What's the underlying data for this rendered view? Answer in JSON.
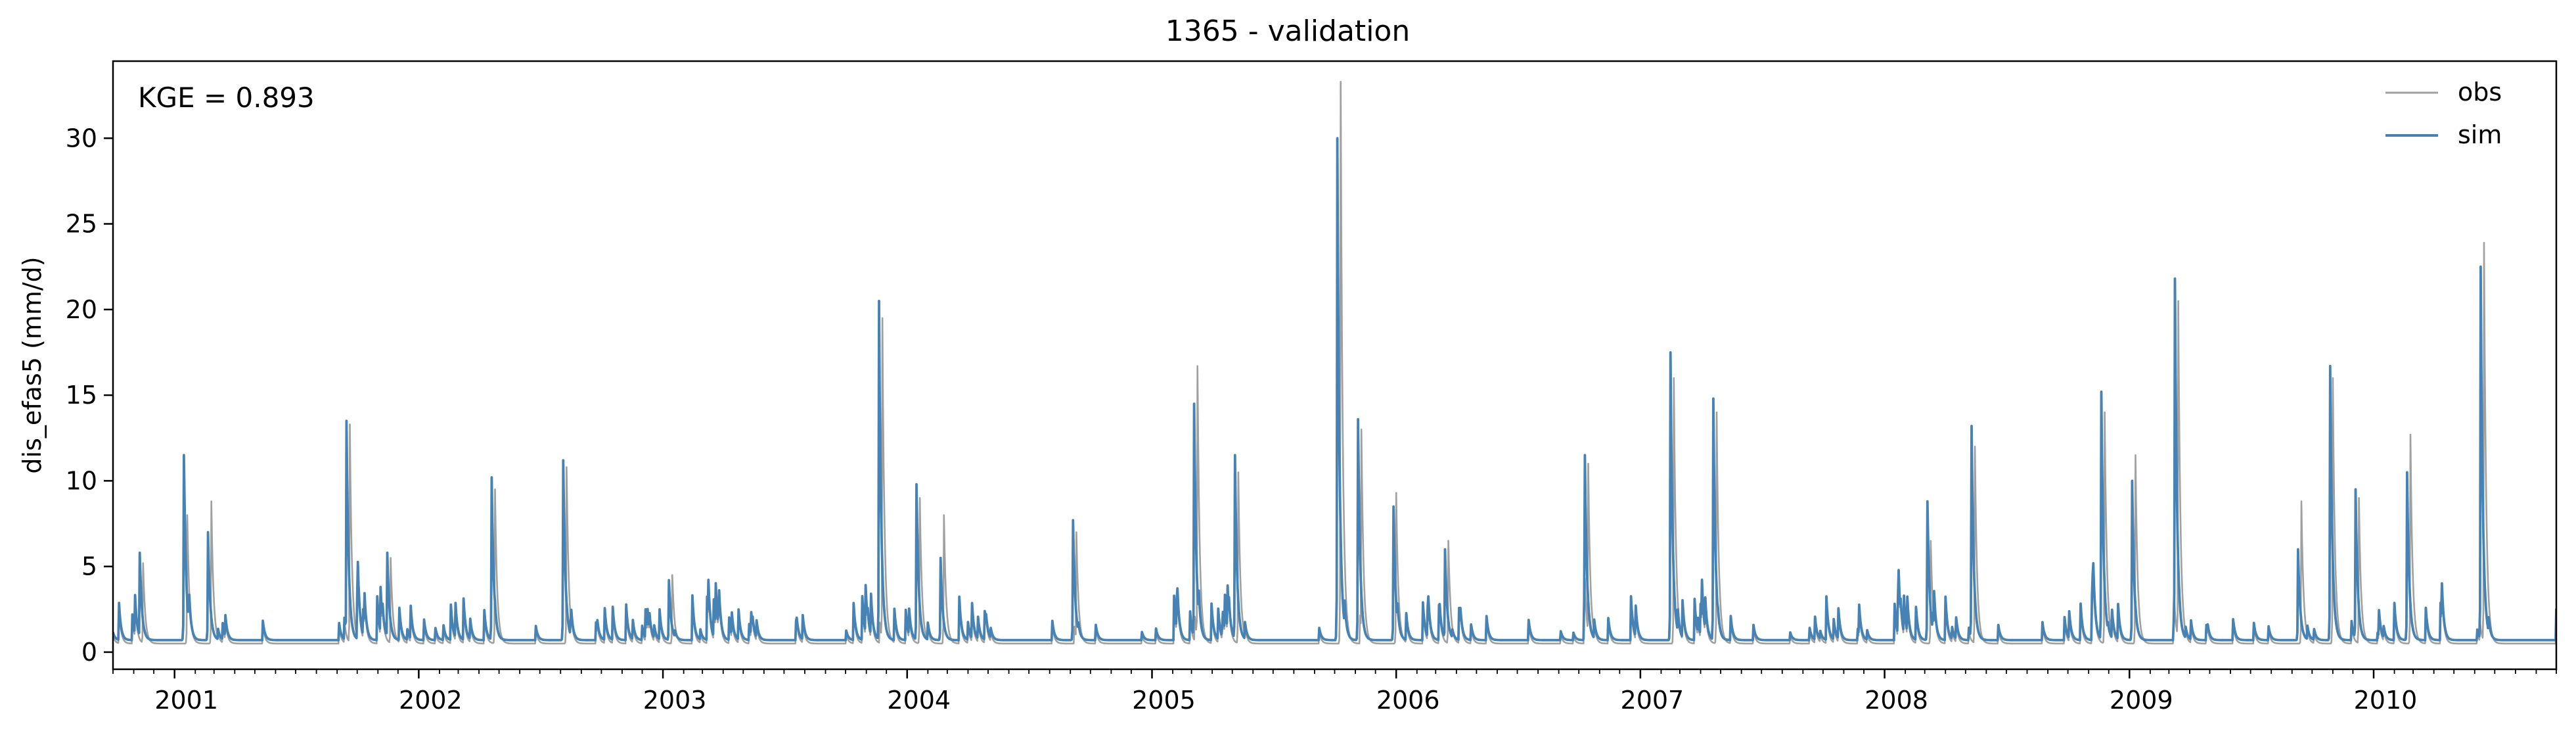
{
  "chart_data": {
    "type": "line",
    "title": "1365 - validation",
    "ylabel": "dis_efas5 (mm/d)",
    "xlabel": "",
    "xlim": [
      "2000-10-01",
      "2010-10-01"
    ],
    "ylim": [
      -1,
      34.5
    ],
    "yticks": [
      0,
      5,
      10,
      15,
      20,
      25,
      30
    ],
    "xticks": [
      "2001",
      "2002",
      "2003",
      "2004",
      "2005",
      "2006",
      "2007",
      "2008",
      "2009",
      "2010"
    ],
    "annotation": "KGE = 0.893",
    "legend_position": "top-right",
    "grid": false,
    "colors": {
      "obs": "#a0a0a0",
      "sim": "#4682b4"
    },
    "series": [
      {
        "name": "obs",
        "baseline": 0.5,
        "peaks": [
          [
            "2000-11-15",
            5.2
          ],
          [
            "2001-01-20",
            8.0
          ],
          [
            "2001-02-25",
            8.8
          ],
          [
            "2001-09-20",
            13.3
          ],
          [
            "2001-11-20",
            5.5
          ],
          [
            "2002-04-25",
            9.5
          ],
          [
            "2002-08-10",
            10.8
          ],
          [
            "2003-01-15",
            4.5
          ],
          [
            "2003-11-25",
            19.5
          ],
          [
            "2004-01-20",
            9.0
          ],
          [
            "2004-02-25",
            8.0
          ],
          [
            "2004-09-10",
            7.0
          ],
          [
            "2005-03-10",
            16.7
          ],
          [
            "2005-05-10",
            10.5
          ],
          [
            "2005-10-10",
            33.3
          ],
          [
            "2005-11-10",
            13.0
          ],
          [
            "2006-01-01",
            9.3
          ],
          [
            "2006-03-20",
            6.5
          ],
          [
            "2006-10-15",
            11.0
          ],
          [
            "2007-02-20",
            16.0
          ],
          [
            "2007-04-25",
            14.0
          ],
          [
            "2008-03-10",
            6.5
          ],
          [
            "2008-05-15",
            12.0
          ],
          [
            "2008-11-25",
            14.0
          ],
          [
            "2009-01-10",
            11.5
          ],
          [
            "2009-03-15",
            20.5
          ],
          [
            "2009-09-15",
            8.8
          ],
          [
            "2009-11-01",
            16.0
          ],
          [
            "2009-12-10",
            9.0
          ],
          [
            "2010-02-25",
            12.7
          ],
          [
            "2010-06-15",
            23.9
          ]
        ]
      },
      {
        "name": "sim",
        "baseline": 0.7,
        "peaks": [
          [
            "2000-11-10",
            5.8
          ],
          [
            "2001-01-15",
            11.5
          ],
          [
            "2001-02-20",
            7.0
          ],
          [
            "2001-09-15",
            13.5
          ],
          [
            "2001-11-15",
            5.8
          ],
          [
            "2002-04-20",
            10.2
          ],
          [
            "2002-08-05",
            11.2
          ],
          [
            "2003-01-10",
            4.2
          ],
          [
            "2003-11-20",
            20.5
          ],
          [
            "2004-01-15",
            9.8
          ],
          [
            "2004-02-20",
            5.5
          ],
          [
            "2004-09-05",
            7.7
          ],
          [
            "2005-03-05",
            14.5
          ],
          [
            "2005-05-05",
            11.5
          ],
          [
            "2005-10-05",
            30.0
          ],
          [
            "2005-11-05",
            13.6
          ],
          [
            "2005-12-28",
            8.5
          ],
          [
            "2006-03-15",
            6.0
          ],
          [
            "2006-10-10",
            11.5
          ],
          [
            "2007-02-15",
            17.5
          ],
          [
            "2007-04-20",
            14.8
          ],
          [
            "2008-03-05",
            8.8
          ],
          [
            "2008-05-10",
            13.2
          ],
          [
            "2008-11-20",
            15.2
          ],
          [
            "2009-01-05",
            10.0
          ],
          [
            "2009-03-10",
            21.8
          ],
          [
            "2009-09-10",
            6.0
          ],
          [
            "2009-10-28",
            16.7
          ],
          [
            "2009-12-05",
            9.5
          ],
          [
            "2010-02-20",
            10.5
          ],
          [
            "2010-06-10",
            22.5
          ]
        ]
      }
    ]
  }
}
